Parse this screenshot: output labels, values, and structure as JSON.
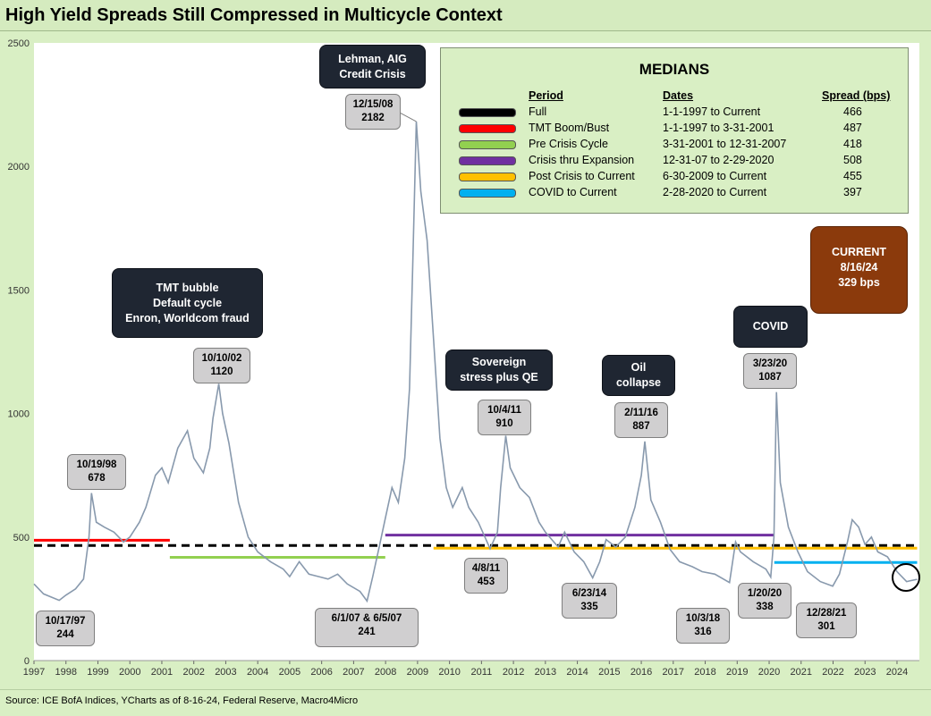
{
  "title": "High Yield Spreads Still Compressed in Multicycle Context",
  "source": "Source: ICE BofA Indices, YCharts as of 8-16-24, Federal Reserve, Macro4Micro",
  "colors": {
    "background": "#d9efc4",
    "series": "#8899ad",
    "callout": "#d0cfd0",
    "event": "#1f2632",
    "current": "#8b3a0c"
  },
  "chart_data": {
    "type": "line",
    "title": "High Yield Spreads Still Compressed in Multicycle Context",
    "ylabel": "Spread (bps)",
    "xlabel": "",
    "xlim": [
      1997,
      2024.7
    ],
    "ylim": [
      0,
      2500
    ],
    "yticks": [
      0,
      500,
      1000,
      1500,
      2000,
      2500
    ],
    "xticks": [
      1997,
      1998,
      1999,
      2000,
      2001,
      2002,
      2003,
      2004,
      2005,
      2006,
      2007,
      2008,
      2009,
      2010,
      2011,
      2012,
      2013,
      2014,
      2015,
      2016,
      2017,
      2018,
      2019,
      2020,
      2021,
      2022,
      2023,
      2024
    ],
    "series": [
      {
        "name": "HY Spread",
        "points": [
          [
            1997.0,
            310
          ],
          [
            1997.3,
            270
          ],
          [
            1997.79,
            244
          ],
          [
            1998.0,
            265
          ],
          [
            1998.3,
            290
          ],
          [
            1998.55,
            330
          ],
          [
            1998.72,
            500
          ],
          [
            1998.8,
            678
          ],
          [
            1998.95,
            560
          ],
          [
            1999.2,
            540
          ],
          [
            1999.5,
            520
          ],
          [
            1999.8,
            480
          ],
          [
            2000.0,
            500
          ],
          [
            2000.3,
            560
          ],
          [
            2000.5,
            620
          ],
          [
            2000.8,
            750
          ],
          [
            2001.0,
            780
          ],
          [
            2001.2,
            720
          ],
          [
            2001.5,
            860
          ],
          [
            2001.8,
            930
          ],
          [
            2002.0,
            820
          ],
          [
            2002.3,
            760
          ],
          [
            2002.5,
            860
          ],
          [
            2002.6,
            980
          ],
          [
            2002.78,
            1120
          ],
          [
            2002.9,
            1000
          ],
          [
            2003.1,
            880
          ],
          [
            2003.4,
            640
          ],
          [
            2003.7,
            500
          ],
          [
            2004.0,
            440
          ],
          [
            2004.4,
            400
          ],
          [
            2004.8,
            370
          ],
          [
            2005.0,
            340
          ],
          [
            2005.3,
            400
          ],
          [
            2005.6,
            350
          ],
          [
            2005.9,
            340
          ],
          [
            2006.2,
            330
          ],
          [
            2006.5,
            350
          ],
          [
            2006.8,
            310
          ],
          [
            2007.2,
            280
          ],
          [
            2007.42,
            241
          ],
          [
            2007.6,
            340
          ],
          [
            2007.8,
            460
          ],
          [
            2008.0,
            580
          ],
          [
            2008.2,
            700
          ],
          [
            2008.4,
            640
          ],
          [
            2008.6,
            820
          ],
          [
            2008.75,
            1100
          ],
          [
            2008.85,
            1600
          ],
          [
            2008.96,
            2182
          ],
          [
            2009.1,
            1900
          ],
          [
            2009.3,
            1700
          ],
          [
            2009.5,
            1300
          ],
          [
            2009.7,
            900
          ],
          [
            2009.9,
            700
          ],
          [
            2010.1,
            620
          ],
          [
            2010.4,
            700
          ],
          [
            2010.6,
            620
          ],
          [
            2010.9,
            560
          ],
          [
            2011.27,
            453
          ],
          [
            2011.5,
            520
          ],
          [
            2011.6,
            700
          ],
          [
            2011.76,
            910
          ],
          [
            2011.9,
            780
          ],
          [
            2012.2,
            700
          ],
          [
            2012.5,
            660
          ],
          [
            2012.8,
            560
          ],
          [
            2013.0,
            520
          ],
          [
            2013.4,
            460
          ],
          [
            2013.6,
            520
          ],
          [
            2013.9,
            440
          ],
          [
            2014.2,
            400
          ],
          [
            2014.48,
            335
          ],
          [
            2014.7,
            400
          ],
          [
            2014.9,
            490
          ],
          [
            2015.2,
            460
          ],
          [
            2015.5,
            500
          ],
          [
            2015.8,
            620
          ],
          [
            2016.0,
            750
          ],
          [
            2016.11,
            887
          ],
          [
            2016.3,
            650
          ],
          [
            2016.6,
            560
          ],
          [
            2016.9,
            450
          ],
          [
            2017.2,
            400
          ],
          [
            2017.6,
            380
          ],
          [
            2017.9,
            360
          ],
          [
            2018.3,
            350
          ],
          [
            2018.76,
            316
          ],
          [
            2018.95,
            480
          ],
          [
            2019.1,
            440
          ],
          [
            2019.5,
            400
          ],
          [
            2019.9,
            370
          ],
          [
            2020.05,
            338
          ],
          [
            2020.15,
            500
          ],
          [
            2020.23,
            1087
          ],
          [
            2020.35,
            720
          ],
          [
            2020.6,
            540
          ],
          [
            2020.9,
            440
          ],
          [
            2021.2,
            360
          ],
          [
            2021.6,
            320
          ],
          [
            2021.99,
            301
          ],
          [
            2022.2,
            350
          ],
          [
            2022.45,
            480
          ],
          [
            2022.6,
            570
          ],
          [
            2022.8,
            540
          ],
          [
            2023.0,
            470
          ],
          [
            2023.2,
            500
          ],
          [
            2023.4,
            440
          ],
          [
            2023.7,
            420
          ],
          [
            2024.0,
            360
          ],
          [
            2024.3,
            320
          ],
          [
            2024.63,
            329
          ]
        ]
      }
    ],
    "medians": [
      {
        "period": "Full",
        "start": 1997.0,
        "end": 2024.63,
        "value": 466,
        "color": "#000000",
        "style": "dashed"
      },
      {
        "period": "TMT Boom/Bust",
        "start": 1997.0,
        "end": 2001.25,
        "value": 487,
        "color": "#ff0000",
        "style": "solid"
      },
      {
        "period": "Pre Crisis Cycle",
        "start": 2001.25,
        "end": 2007.99,
        "value": 418,
        "color": "#92d050",
        "style": "solid"
      },
      {
        "period": "Crisis thru Expansion",
        "start": 2007.99,
        "end": 2020.16,
        "value": 508,
        "color": "#7030a0",
        "style": "solid"
      },
      {
        "period": "Post Crisis to Current",
        "start": 2009.5,
        "end": 2024.63,
        "value": 455,
        "color": "#ffc000",
        "style": "solid"
      },
      {
        "period": "COVID to Current",
        "start": 2020.16,
        "end": 2024.63,
        "value": 397,
        "color": "#00b0f0",
        "style": "solid"
      }
    ]
  },
  "medians_table": {
    "title": "MEDIANS",
    "headers": {
      "period": "Period",
      "dates": "Dates",
      "spread": "Spread (bps)"
    },
    "rows": [
      {
        "period": "Full",
        "dates": "1-1-1997  to Current",
        "spread": "466",
        "color": "#000000"
      },
      {
        "period": "TMT  Boom/Bust",
        "dates": "1-1-1997 to 3-31-2001",
        "spread": "487",
        "color": "#ff0000"
      },
      {
        "period": "Pre Crisis Cycle",
        "dates": "3-31-2001  to 12-31-2007",
        "spread": "418",
        "color": "#92d050"
      },
      {
        "period": "Crisis thru Expansion",
        "dates": "12-31-07  to 2-29-2020",
        "spread": "508",
        "color": "#7030a0"
      },
      {
        "period": "Post Crisis to Current",
        "dates": " 6-30-2009  to Current",
        "spread": "455",
        "color": "#ffc000"
      },
      {
        "period": "COVID to Current",
        "dates": " 2-28-2020  to Current",
        "spread": "397",
        "color": "#00b0f0"
      }
    ]
  },
  "callouts": [
    {
      "date": "10/17/97",
      "value": "244"
    },
    {
      "date": "10/19/98",
      "value": "678"
    },
    {
      "date": "10/10/02",
      "value": "1120"
    },
    {
      "date": "6/1/07 & 6/5/07",
      "value": "241"
    },
    {
      "date": "12/15/08",
      "value": "2182"
    },
    {
      "date": "10/4/11",
      "value": "910"
    },
    {
      "date": "4/8/11",
      "value": "453"
    },
    {
      "date": "6/23/14",
      "value": "335"
    },
    {
      "date": "2/11/16",
      "value": "887"
    },
    {
      "date": "10/3/18",
      "value": "316"
    },
    {
      "date": "3/23/20",
      "value": "1087"
    },
    {
      "date": "1/20/20",
      "value": "338"
    },
    {
      "date": "12/28/21",
      "value": "301"
    }
  ],
  "events": {
    "tmt": [
      "TMT bubble",
      "Default cycle",
      "Enron, Worldcom fraud"
    ],
    "lehman": [
      "Lehman, AIG",
      "Credit Crisis"
    ],
    "sovereign": [
      "Sovereign",
      "stress plus QE"
    ],
    "oil": [
      "Oil",
      "collapse"
    ],
    "covid": [
      "COVID"
    ]
  },
  "current": {
    "label": "CURRENT",
    "date": "8/16/24",
    "value": "329  bps"
  }
}
